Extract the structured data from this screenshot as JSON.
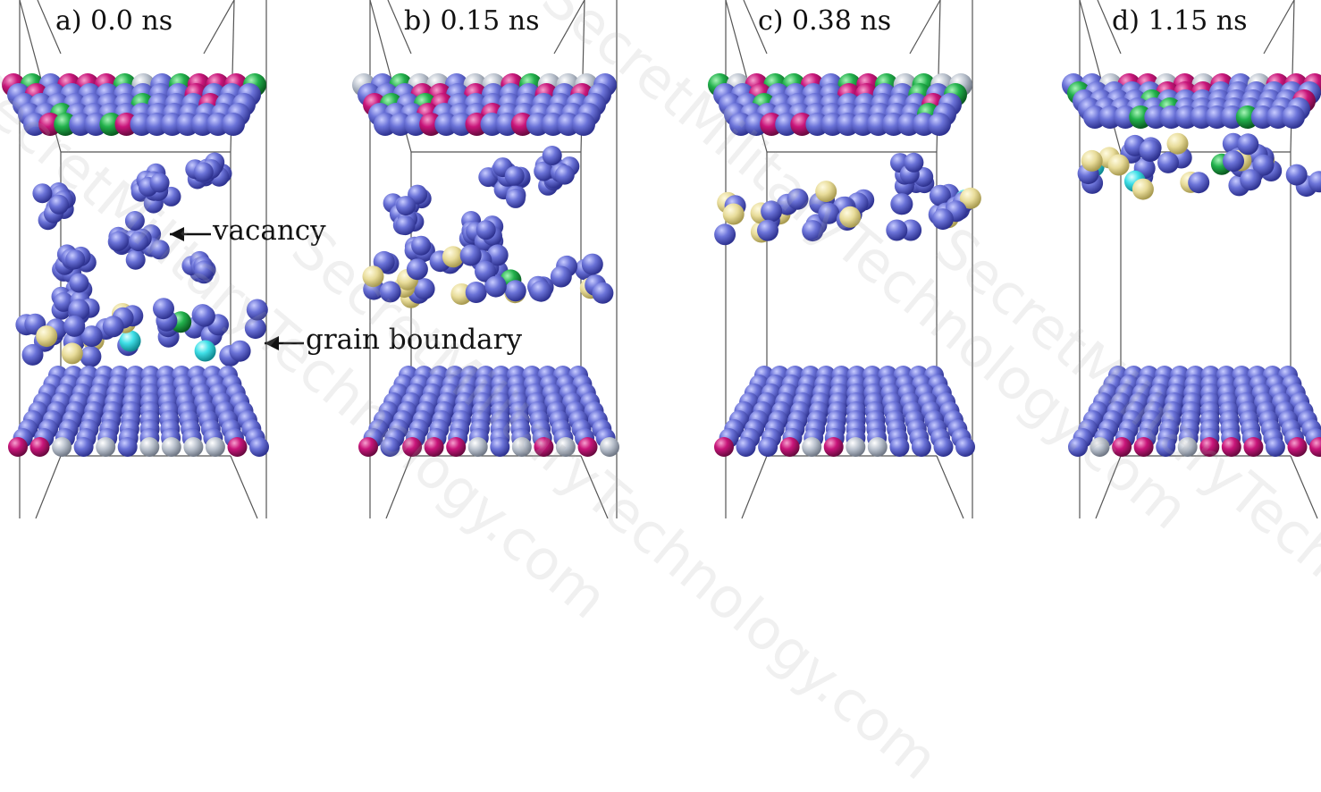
{
  "panels": [
    {
      "label": "a) 0.0 ns"
    },
    {
      "label": "b) 0.15 ns"
    },
    {
      "label": "c) 0.38 ns"
    },
    {
      "label": "d) 1.15 ns"
    }
  ],
  "annotations": {
    "vacancy": "vacancy",
    "grain_boundary": "grain boundary"
  },
  "watermarks": [
    "SecretMilitaryTechnology.com",
    "SecretMilitaryTechnology.com",
    "SecretMilitaryTechnology.com",
    "SecretMilitaryTechnology.com"
  ],
  "colors": {
    "blue_atom": "#6b73d8",
    "magenta_atom": "#c8157a",
    "silver_atom": "#b8c0cc",
    "green_atom": "#22b14c",
    "yellow_atom": "#e8dc9a",
    "cyan_atom": "#40e0e8"
  }
}
